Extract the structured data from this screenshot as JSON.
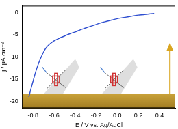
{
  "chart_data": {
    "type": "line",
    "x_label": "E / V vs. Ag/AgCl",
    "y_label": "j / µA cm⁻²",
    "series": [
      {
        "name": null,
        "color": "#2f4fd0",
        "x": [
          -0.84,
          -0.82,
          -0.8,
          -0.78,
          -0.76,
          -0.74,
          -0.72,
          -0.7,
          -0.68,
          -0.65,
          -0.6,
          -0.55,
          -0.5,
          -0.45,
          -0.4,
          -0.35,
          -0.3,
          -0.25,
          -0.2,
          -0.15,
          -0.1,
          -0.05,
          0.0,
          0.05,
          0.1,
          0.15,
          0.2,
          0.25,
          0.3,
          0.35
        ],
        "values": [
          -19.0,
          -17.2,
          -15.5,
          -13.8,
          -12.3,
          -11.0,
          -9.9,
          -8.9,
          -8.1,
          -7.3,
          -6.4,
          -5.8,
          -5.3,
          -4.8,
          -4.4,
          -3.9,
          -3.5,
          -3.1,
          -2.7,
          -2.3,
          -2.0,
          -1.7,
          -1.4,
          -1.2,
          -1.0,
          -0.8,
          -0.6,
          -0.5,
          -0.35,
          -0.25
        ]
      }
    ],
    "xlim": [
      -0.9,
      0.55
    ],
    "xticks": [
      {
        "value": -0.8,
        "label": "-0.8"
      },
      {
        "value": -0.6,
        "label": "-0.6"
      },
      {
        "value": -0.4,
        "label": "-0.4"
      },
      {
        "value": -0.2,
        "label": "-0.2"
      },
      {
        "value": 0,
        "label": "0.0"
      },
      {
        "value": 0.2,
        "label": "0.2"
      },
      {
        "value": 0.4,
        "label": "0.4"
      }
    ],
    "ylim": [
      -21.5,
      1.5
    ],
    "yticks": [
      -20,
      -15,
      -10,
      -5,
      0
    ],
    "grid": false
  }
}
